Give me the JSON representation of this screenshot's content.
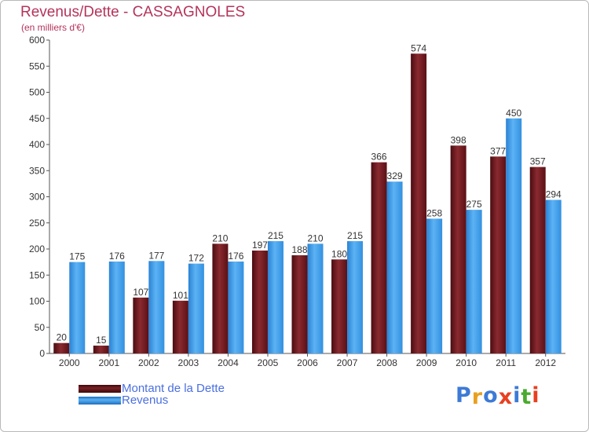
{
  "chart_data": {
    "type": "bar",
    "title": "Revenus/Dette - CASSAGNOLES",
    "subtitle": "(en milliers d'€)",
    "xlabel": "",
    "ylabel": "",
    "ylim": [
      0,
      600
    ],
    "yticks": [
      0,
      50,
      100,
      150,
      200,
      250,
      300,
      350,
      400,
      450,
      500,
      550,
      600
    ],
    "grid": false,
    "categories": [
      "2000",
      "2001",
      "2002",
      "2003",
      "2004",
      "2005",
      "2006",
      "2007",
      "2008",
      "2009",
      "2010",
      "2011",
      "2012"
    ],
    "series": [
      {
        "name": "Montant de la Dette",
        "color": "#7a1f24",
        "values": [
          20,
          15,
          107,
          101,
          210,
          197,
          188,
          180,
          366,
          574,
          398,
          377,
          357
        ]
      },
      {
        "name": "Revenus",
        "color": "#3d9be8",
        "values": [
          175,
          176,
          177,
          172,
          176,
          215,
          210,
          215,
          329,
          258,
          275,
          450,
          294
        ]
      }
    ],
    "legend": "bottom-left"
  },
  "logo": {
    "text": "Proxiti",
    "colors": [
      "#3d7ad6",
      "#e8a020",
      "#3d7ad6",
      "#e84020",
      "#3d7ad6",
      "#4aaa30",
      "#e84020"
    ]
  }
}
